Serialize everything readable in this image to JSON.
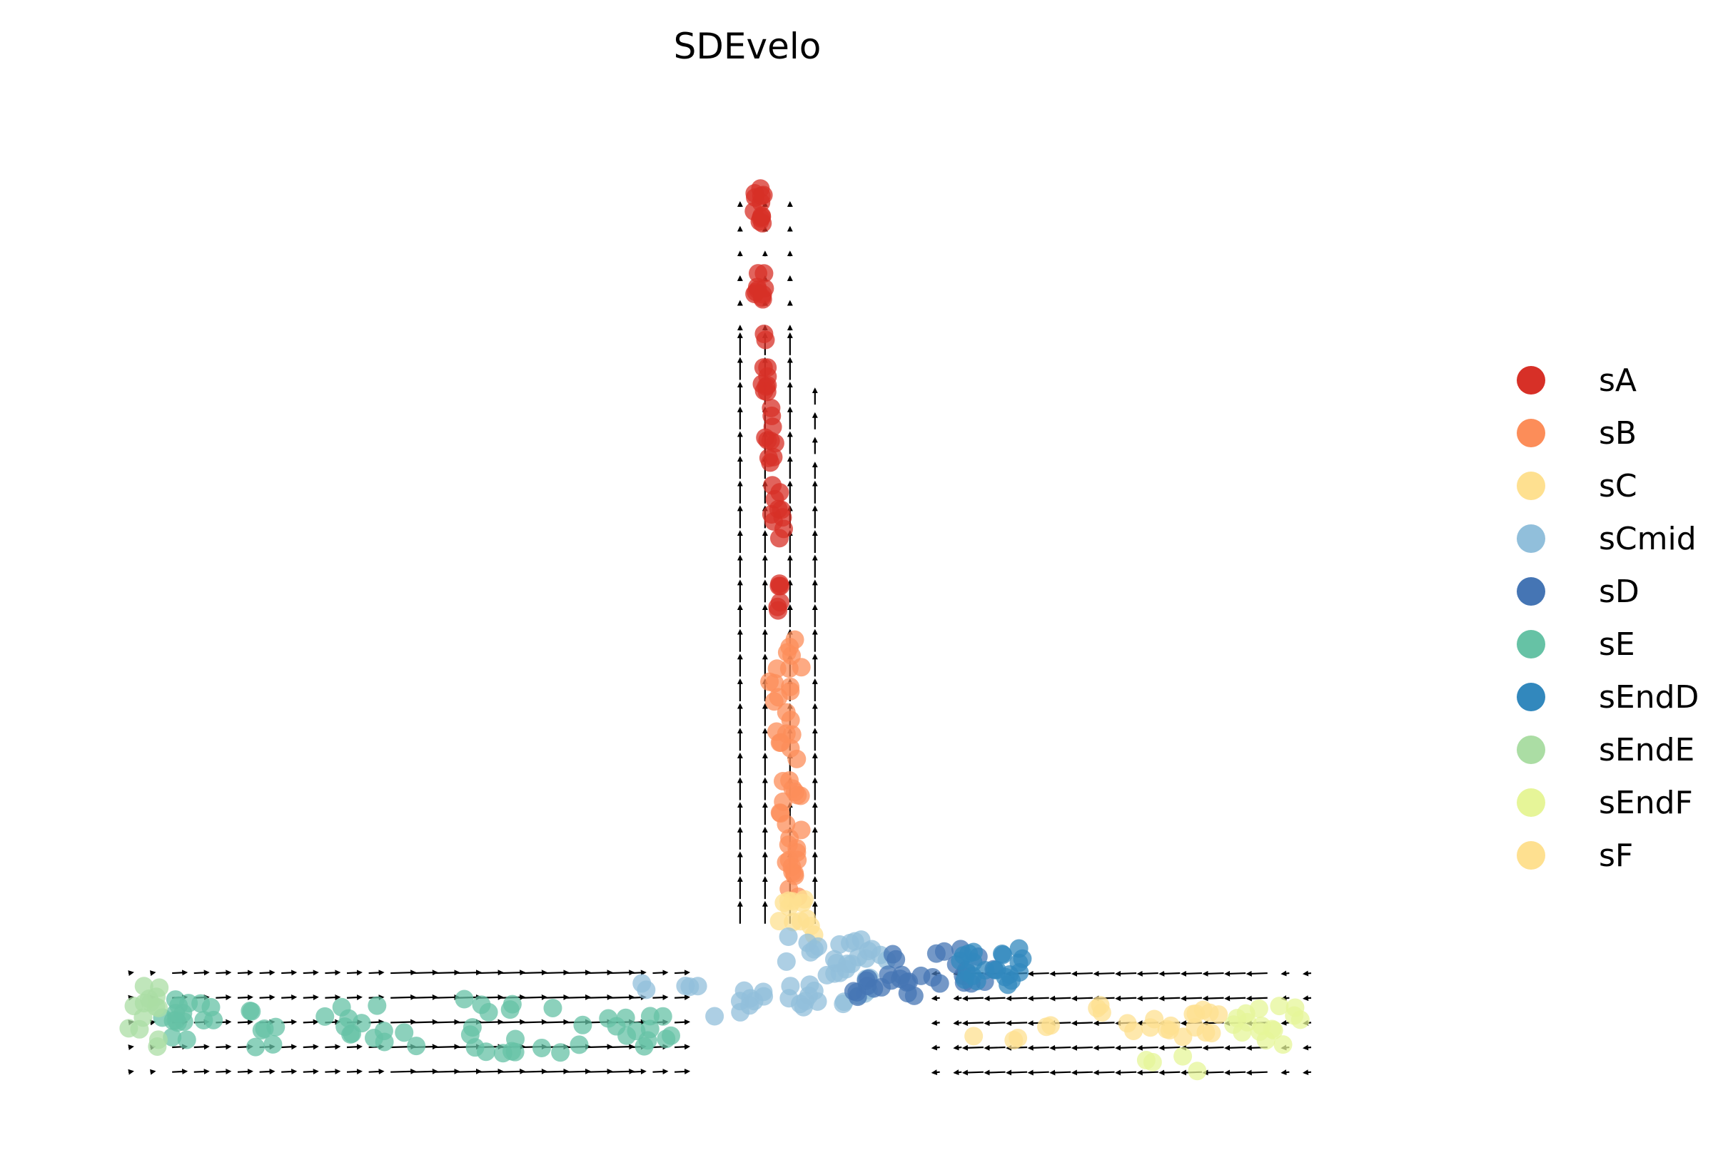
{
  "chart_data": {
    "type": "scatter",
    "title": "SDEvelo",
    "xlabel": "",
    "ylabel": "",
    "grid": false,
    "axes_visible": false,
    "legend_position": "right",
    "xlim": [
      -1.1,
      1.05
    ],
    "ylim": [
      -0.12,
      1.45
    ],
    "series": [
      {
        "name": "sA",
        "color": "#d73027",
        "cluster": [
          {
            "n": 12,
            "x": [
              -0.02,
              0.0
            ],
            "y": [
              1.26,
              1.33
            ]
          },
          {
            "n": 10,
            "x": [
              -0.02,
              0.0
            ],
            "y": [
              1.14,
              1.2
            ]
          },
          {
            "n": 10,
            "x": [
              -0.01,
              0.01
            ],
            "y": [
              1.0,
              1.1
            ]
          },
          {
            "n": 10,
            "x": [
              0.0,
              0.02
            ],
            "y": [
              0.86,
              0.98
            ]
          },
          {
            "n": 10,
            "x": [
              0.01,
              0.03
            ],
            "y": [
              0.7,
              0.86
            ]
          },
          {
            "n": 6,
            "x": [
              0.02,
              0.03
            ],
            "y": [
              0.63,
              0.7
            ]
          }
        ]
      },
      {
        "name": "sB",
        "color": "#fc8d59",
        "cluster": [
          {
            "n": 16,
            "x": [
              0.0,
              0.06
            ],
            "y": [
              0.45,
              0.6
            ]
          },
          {
            "n": 16,
            "x": [
              0.02,
              0.06
            ],
            "y": [
              0.3,
              0.45
            ]
          },
          {
            "n": 14,
            "x": [
              0.03,
              0.06
            ],
            "y": [
              0.18,
              0.3
            ]
          }
        ]
      },
      {
        "name": "sC",
        "color": "#fee090",
        "cluster": [
          {
            "n": 12,
            "x": [
              0.02,
              0.08
            ],
            "y": [
              0.12,
              0.18
            ]
          }
        ]
      },
      {
        "name": "sCmid",
        "color": "#91bfdb",
        "cluster": [
          {
            "n": 40,
            "x": [
              0.03,
              0.2
            ],
            "y": [
              0.0,
              0.12
            ]
          },
          {
            "n": 10,
            "x": [
              -0.12,
              0.0
            ],
            "y": [
              -0.01,
              0.04
            ]
          },
          {
            "n": 4,
            "x": [
              -0.2,
              -0.12
            ],
            "y": [
              0.03,
              0.05
            ]
          }
        ]
      },
      {
        "name": "sD",
        "color": "#4575b4",
        "cluster": [
          {
            "n": 20,
            "x": [
              0.2,
              0.38
            ],
            "y": [
              0.04,
              0.1
            ]
          },
          {
            "n": 12,
            "x": [
              0.14,
              0.25
            ],
            "y": [
              0.02,
              0.06
            ]
          }
        ]
      },
      {
        "name": "sE",
        "color": "#66c2a5",
        "cluster": [
          {
            "n": 16,
            "x": [
              -0.98,
              -0.88
            ],
            "y": [
              -0.05,
              0.02
            ]
          },
          {
            "n": 18,
            "x": [
              -0.86,
              -0.6
            ],
            "y": [
              -0.06,
              0.01
            ]
          },
          {
            "n": 20,
            "x": [
              -0.58,
              -0.28
            ],
            "y": [
              -0.07,
              0.02
            ]
          },
          {
            "n": 12,
            "x": [
              -0.26,
              -0.14
            ],
            "y": [
              -0.06,
              0.0
            ]
          }
        ]
      },
      {
        "name": "sEndD",
        "color": "#3288bd",
        "cluster": [
          {
            "n": 22,
            "x": [
              0.3,
              0.42
            ],
            "y": [
              0.04,
              0.1
            ]
          }
        ]
      },
      {
        "name": "sEndE",
        "color": "#abdda4",
        "cluster": [
          {
            "n": 14,
            "x": [
              -1.02,
              -0.97
            ],
            "y": [
              -0.06,
              0.04
            ]
          }
        ]
      },
      {
        "name": "sEndF",
        "color": "#e6f598",
        "cluster": [
          {
            "n": 16,
            "x": [
              0.74,
              0.86
            ],
            "y": [
              -0.06,
              0.01
            ]
          },
          {
            "n": 4,
            "x": [
              0.6,
              0.7
            ],
            "y": [
              -0.1,
              -0.07
            ]
          }
        ]
      },
      {
        "name": "sF",
        "color": "#fee090",
        "cluster": [
          {
            "n": 24,
            "x": [
              0.3,
              0.74
            ],
            "y": [
              -0.05,
              0.01
            ]
          }
        ]
      }
    ],
    "velocity_field": {
      "color": "#000000",
      "description": "arrows point upward along the vertical trunk, rightward along the left branch, leftward along the right branch"
    }
  }
}
